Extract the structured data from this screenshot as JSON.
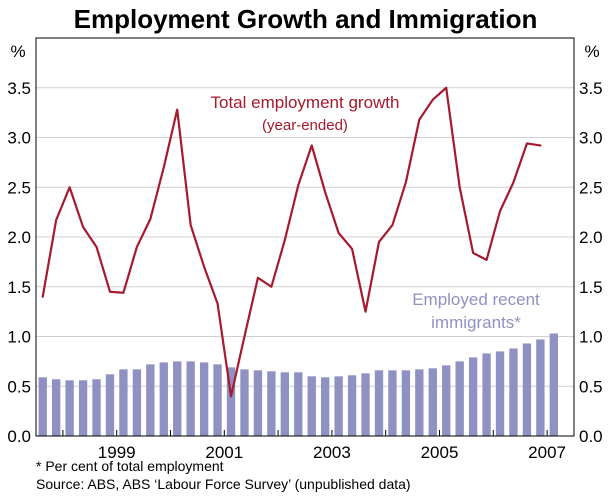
{
  "chart_data": {
    "type": "line",
    "title": "Employment Growth and Immigration",
    "y_unit_left": "%",
    "y_unit_right": "%",
    "ylim": [
      0,
      4
    ],
    "y_ticks": [
      "0.0",
      "0.5",
      "1.0",
      "1.5",
      "2.0",
      "2.5",
      "3.0",
      "3.5"
    ],
    "x_tick_labels": [
      {
        "label": "1999",
        "x": 1999
      },
      {
        "label": "2001",
        "x": 2001
      },
      {
        "label": "2003",
        "x": 2003
      },
      {
        "label": "2005",
        "x": 2005
      },
      {
        "label": "2007",
        "x": 2007
      }
    ],
    "xlim": [
      1997.5,
      2007.5
    ],
    "grid": true,
    "series": [
      {
        "name": "Total employment growth",
        "subname": "(year-ended)",
        "kind": "line",
        "color": "#a6192e",
        "points": [
          [
            1997.625,
            1.4
          ],
          [
            1997.875,
            2.17
          ],
          [
            1998.125,
            2.5
          ],
          [
            1998.375,
            2.1
          ],
          [
            1998.625,
            1.9
          ],
          [
            1998.875,
            1.45
          ],
          [
            1999.125,
            1.44
          ],
          [
            1999.375,
            1.9
          ],
          [
            1999.625,
            2.18
          ],
          [
            1999.875,
            2.7
          ],
          [
            2000.125,
            3.28
          ],
          [
            2000.375,
            2.12
          ],
          [
            2000.625,
            1.7
          ],
          [
            2000.875,
            1.33
          ],
          [
            2001.125,
            0.4
          ],
          [
            2001.375,
            1.0
          ],
          [
            2001.625,
            1.59
          ],
          [
            2001.875,
            1.5
          ],
          [
            2002.125,
            1.97
          ],
          [
            2002.375,
            2.52
          ],
          [
            2002.625,
            2.92
          ],
          [
            2002.875,
            2.45
          ],
          [
            2003.125,
            2.04
          ],
          [
            2003.375,
            1.88
          ],
          [
            2003.625,
            1.25
          ],
          [
            2003.875,
            1.95
          ],
          [
            2004.125,
            2.12
          ],
          [
            2004.375,
            2.55
          ],
          [
            2004.625,
            3.18
          ],
          [
            2004.875,
            3.38
          ],
          [
            2005.125,
            3.5
          ],
          [
            2005.375,
            2.5
          ],
          [
            2005.625,
            1.84
          ],
          [
            2005.875,
            1.77
          ],
          [
            2006.125,
            2.26
          ],
          [
            2006.375,
            2.55
          ],
          [
            2006.625,
            2.94
          ],
          [
            2006.875,
            2.92
          ]
        ]
      },
      {
        "name": "Employed recent immigrants*",
        "kind": "bar",
        "color": "#8f91c2",
        "points": [
          [
            1997.625,
            0.59
          ],
          [
            1997.875,
            0.57
          ],
          [
            1998.125,
            0.56
          ],
          [
            1998.375,
            0.56
          ],
          [
            1998.625,
            0.57
          ],
          [
            1998.875,
            0.62
          ],
          [
            1999.125,
            0.67
          ],
          [
            1999.375,
            0.67
          ],
          [
            1999.625,
            0.72
          ],
          [
            1999.875,
            0.74
          ],
          [
            2000.125,
            0.75
          ],
          [
            2000.375,
            0.75
          ],
          [
            2000.625,
            0.74
          ],
          [
            2000.875,
            0.72
          ],
          [
            2001.125,
            0.69
          ],
          [
            2001.375,
            0.67
          ],
          [
            2001.625,
            0.66
          ],
          [
            2001.875,
            0.65
          ],
          [
            2002.125,
            0.64
          ],
          [
            2002.375,
            0.64
          ],
          [
            2002.625,
            0.6
          ],
          [
            2002.875,
            0.59
          ],
          [
            2003.125,
            0.6
          ],
          [
            2003.375,
            0.61
          ],
          [
            2003.625,
            0.63
          ],
          [
            2003.875,
            0.66
          ],
          [
            2004.125,
            0.66
          ],
          [
            2004.375,
            0.66
          ],
          [
            2004.625,
            0.67
          ],
          [
            2004.875,
            0.68
          ],
          [
            2005.125,
            0.71
          ],
          [
            2005.375,
            0.75
          ],
          [
            2005.625,
            0.79
          ],
          [
            2005.875,
            0.83
          ],
          [
            2006.125,
            0.85
          ],
          [
            2006.375,
            0.88
          ],
          [
            2006.625,
            0.93
          ],
          [
            2006.875,
            0.97
          ],
          [
            2007.125,
            1.03
          ]
        ]
      }
    ],
    "annotations": {
      "line_label": "Total employment growth",
      "line_sublabel": "(year-ended)",
      "bar_label_line1": "Employed recent",
      "bar_label_line2": "immigrants*"
    }
  },
  "footnotes": {
    "note": "*   Per cent of total employment",
    "source": "Source: ABS, ABS ‘Labour Force Survey’ (unpublished data)"
  }
}
